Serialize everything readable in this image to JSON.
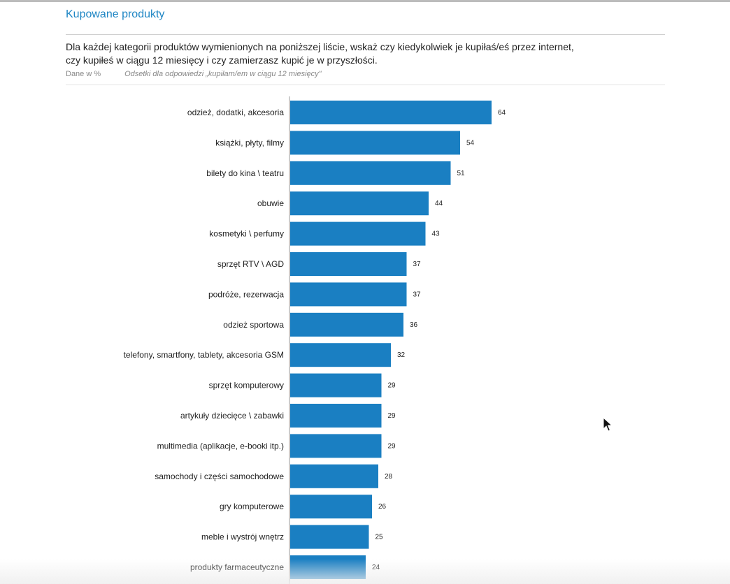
{
  "header": {
    "title": "Kupowane produkty"
  },
  "question": {
    "line1": "Dla każdej kategorii produktów wymienionych na poniższej liście, wskaż czy kiedykolwiek je kupiłaś/eś przez internet,",
    "line2": "czy kupiłeś w ciągu 12 miesięcy i czy zamierzasz kupić je w przyszłości."
  },
  "meta": {
    "unit": "Dane w %",
    "note": "Odsetki dla odpowiedzi „kupiłam/em w ciągu 12 miesięcy\""
  },
  "chart_data": {
    "type": "bar",
    "orientation": "horizontal",
    "bar_color": "#1a7fc2",
    "categories": [
      "odzież, dodatki, akcesoria",
      "książki, płyty, filmy",
      "bilety do kina \\ teatru",
      "obuwie",
      "kosmetyki \\ perfumy",
      "sprzęt RTV \\ AGD",
      "podróże, rezerwacja",
      "odzież sportowa",
      "telefony, smartfony, tablety, akcesoria GSM",
      "sprzęt komputerowy",
      "artykuły dziecięce \\ zabawki",
      "multimedia (aplikacje, e-booki itp.)",
      "samochody i części samochodowe",
      "gry komputerowe",
      "meble i wystrój wnętrz",
      "produkty farmaceutyczne"
    ],
    "values": [
      64,
      54,
      51,
      44,
      43,
      37,
      37,
      36,
      32,
      29,
      29,
      29,
      28,
      26,
      25,
      24
    ],
    "labels": [
      "64",
      "54",
      "51",
      "44",
      "43",
      "37",
      "37",
      "36",
      "32",
      "29",
      "29",
      "29",
      "28",
      "26",
      "25",
      "24"
    ],
    "xlim": [
      0,
      100
    ],
    "grid": false,
    "legend": "none"
  }
}
